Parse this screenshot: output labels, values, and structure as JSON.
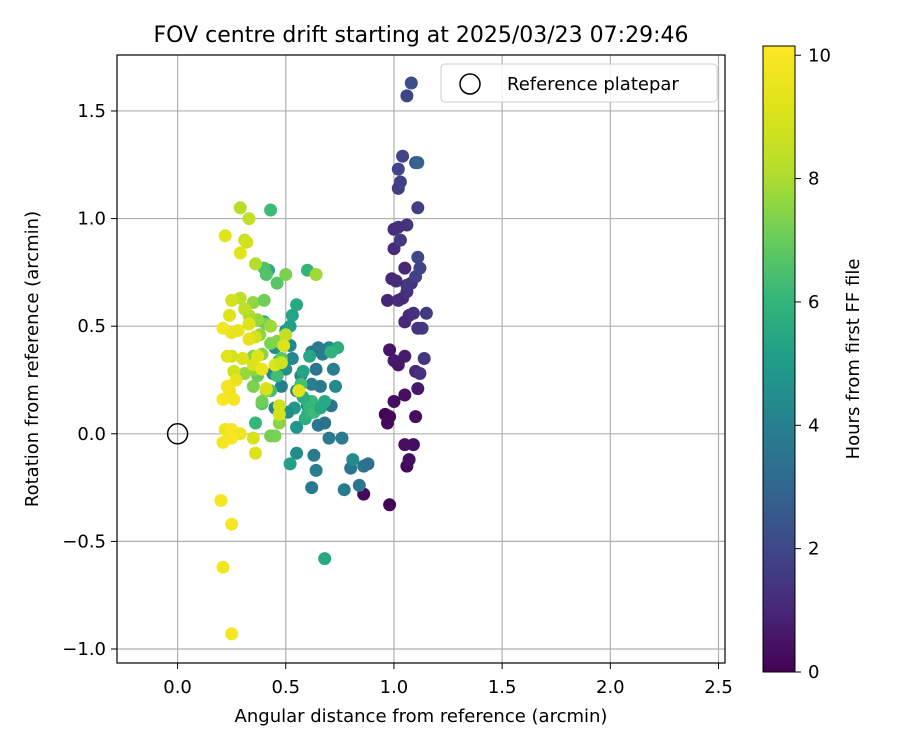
{
  "chart_data": {
    "type": "scatter",
    "title": "FOV centre drift starting at 2025/03/23 07:29:46",
    "xlabel": "Angular distance from reference (arcmin)",
    "ylabel": "Rotation from reference (arcmin)",
    "xlim": [
      -0.28,
      2.53
    ],
    "ylim": [
      -1.065,
      1.76
    ],
    "x_ticks": [
      0.0,
      0.5,
      1.0,
      1.5,
      2.0,
      2.5
    ],
    "x_tick_labels": [
      "0.0",
      "0.5",
      "1.0",
      "1.5",
      "2.0",
      "2.5"
    ],
    "y_ticks": [
      -1.0,
      -0.5,
      0.0,
      0.5,
      1.0,
      1.5
    ],
    "y_tick_labels": [
      "−1.0",
      "−0.5",
      "0.0",
      "0.5",
      "1.0",
      "1.5"
    ],
    "grid": true,
    "legend": {
      "position": "top-right",
      "entries": [
        "Reference platepar"
      ]
    },
    "reference_point": {
      "x": 0.0,
      "y": 0.0
    },
    "colorbar": {
      "label": "Hours from first FF file",
      "colormap": "viridis",
      "range": [
        0,
        10.15
      ],
      "ticks": [
        0,
        2,
        4,
        6,
        8,
        10
      ],
      "tick_labels": [
        "0",
        "2",
        "4",
        "6",
        "8",
        "10"
      ]
    },
    "points": [
      [
        0.98,
        -0.33,
        0.1
      ],
      [
        0.86,
        -0.28,
        0.2
      ],
      [
        1.06,
        -0.15,
        0.2
      ],
      [
        1.07,
        -0.12,
        0.3
      ],
      [
        1.09,
        -0.05,
        0.3
      ],
      [
        1.05,
        -0.05,
        0.4
      ],
      [
        0.97,
        0.05,
        0.2
      ],
      [
        0.96,
        0.09,
        0.1
      ],
      [
        0.98,
        0.08,
        0.2
      ],
      [
        1.1,
        0.08,
        0.3
      ],
      [
        1.0,
        0.15,
        0.3
      ],
      [
        1.05,
        0.18,
        0.4
      ],
      [
        1.11,
        0.21,
        0.6
      ],
      [
        0.98,
        0.39,
        0.5
      ],
      [
        1.0,
        0.34,
        0.7
      ],
      [
        1.05,
        0.36,
        0.7
      ],
      [
        1.02,
        0.32,
        0.6
      ],
      [
        1.1,
        0.29,
        1.0
      ],
      [
        1.12,
        0.28,
        1.3
      ],
      [
        1.14,
        0.35,
        1.5
      ],
      [
        1.13,
        0.49,
        1.7
      ],
      [
        1.11,
        0.49,
        1.4
      ],
      [
        1.05,
        0.52,
        1.0
      ],
      [
        1.07,
        0.55,
        1.1
      ],
      [
        1.09,
        0.56,
        1.3
      ],
      [
        1.15,
        0.56,
        1.6
      ],
      [
        0.97,
        0.62,
        0.9
      ],
      [
        1.02,
        0.62,
        1.2
      ],
      [
        1.04,
        0.63,
        1.1
      ],
      [
        1.06,
        0.66,
        1.3
      ],
      [
        1.08,
        0.7,
        1.2
      ],
      [
        1.06,
        0.69,
        1.5
      ],
      [
        0.99,
        0.72,
        1.0
      ],
      [
        1.01,
        0.71,
        1.1
      ],
      [
        1.05,
        0.77,
        1.0
      ],
      [
        1.1,
        0.73,
        1.8
      ],
      [
        1.12,
        0.77,
        1.9
      ],
      [
        1.11,
        0.82,
        2.0
      ],
      [
        1.0,
        0.86,
        1.1
      ],
      [
        1.0,
        0.95,
        1.2
      ],
      [
        1.02,
        0.96,
        1.3
      ],
      [
        1.06,
        0.97,
        1.4
      ],
      [
        1.03,
        0.9,
        1.6
      ],
      [
        1.11,
        1.05,
        1.7
      ],
      [
        1.02,
        1.14,
        1.7
      ],
      [
        1.03,
        1.17,
        1.8
      ],
      [
        1.02,
        1.23,
        1.9
      ],
      [
        1.04,
        1.29,
        1.9
      ],
      [
        1.1,
        1.26,
        2.4
      ],
      [
        1.11,
        1.26,
        2.9
      ],
      [
        1.06,
        1.57,
        1.9
      ],
      [
        1.08,
        1.63,
        2.2
      ],
      [
        0.76,
        -0.02,
        3.8
      ],
      [
        0.7,
        -0.02,
        3.7
      ],
      [
        0.65,
        0.04,
        3.6
      ],
      [
        0.68,
        0.05,
        3.4
      ],
      [
        0.71,
        0.13,
        3.5
      ],
      [
        0.66,
        0.22,
        3.7
      ],
      [
        0.64,
        0.3,
        3.6
      ],
      [
        0.67,
        0.37,
        3.9
      ],
      [
        0.7,
        0.4,
        4.2
      ],
      [
        0.72,
        0.3,
        4.0
      ],
      [
        0.73,
        0.22,
        4.4
      ],
      [
        0.62,
        0.23,
        3.9
      ],
      [
        0.62,
        0.38,
        3.8
      ],
      [
        0.65,
        0.4,
        3.7
      ],
      [
        0.6,
        0.13,
        4.3
      ],
      [
        0.63,
        -0.1,
        3.8
      ],
      [
        0.64,
        -0.17,
        3.9
      ],
      [
        0.62,
        -0.25,
        3.7
      ],
      [
        0.77,
        -0.26,
        3.8
      ],
      [
        0.84,
        -0.24,
        3.6
      ],
      [
        0.8,
        -0.16,
        3.6
      ],
      [
        0.86,
        -0.15,
        3.6
      ],
      [
        0.88,
        -0.14,
        3.4
      ],
      [
        0.81,
        -0.12,
        4.4
      ],
      [
        0.55,
        -0.09,
        4.4
      ],
      [
        0.52,
        -0.14,
        5.2
      ],
      [
        0.68,
        -0.58,
        5.5
      ],
      [
        0.55,
        0.03,
        4.8
      ],
      [
        0.54,
        0.12,
        4.9
      ],
      [
        0.51,
        0.1,
        4.6
      ],
      [
        0.45,
        0.12,
        4.1
      ],
      [
        0.48,
        0.22,
        3.9
      ],
      [
        0.44,
        0.28,
        4.1
      ],
      [
        0.5,
        0.3,
        4.6
      ],
      [
        0.55,
        0.2,
        4.0
      ],
      [
        0.57,
        0.27,
        4.2
      ],
      [
        0.53,
        0.35,
        4.3
      ],
      [
        0.52,
        0.41,
        4.3
      ],
      [
        0.5,
        0.48,
        4.8
      ],
      [
        0.52,
        0.5,
        5.1
      ],
      [
        0.53,
        0.55,
        5.3
      ],
      [
        0.55,
        0.6,
        5.5
      ],
      [
        0.45,
        0.4,
        4.5
      ],
      [
        0.47,
        0.34,
        4.9
      ],
      [
        0.4,
        0.52,
        5.1
      ],
      [
        0.59,
        0.07,
        5.6
      ],
      [
        0.6,
        0.09,
        5.8
      ],
      [
        0.61,
        0.12,
        6.0
      ],
      [
        0.63,
        0.1,
        6.2
      ],
      [
        0.6,
        0.15,
        5.9
      ],
      [
        0.62,
        0.15,
        6.1
      ],
      [
        0.66,
        0.12,
        5.5
      ],
      [
        0.68,
        0.15,
        5.5
      ],
      [
        0.58,
        0.17,
        5.7
      ],
      [
        0.57,
        0.23,
        6.4
      ],
      [
        0.58,
        0.29,
        5.3
      ],
      [
        0.61,
        0.36,
        5.4
      ],
      [
        0.74,
        0.4,
        5.7
      ],
      [
        0.71,
        0.38,
        5.9
      ],
      [
        0.48,
        0.35,
        6.8
      ],
      [
        0.46,
        0.27,
        6.3
      ],
      [
        0.43,
        0.2,
        6.4
      ],
      [
        0.39,
        0.14,
        6.6
      ],
      [
        0.36,
        0.05,
        6.1
      ],
      [
        0.42,
        0.76,
        5.6
      ],
      [
        0.6,
        0.76,
        6.0
      ],
      [
        0.43,
        1.04,
        6.2
      ],
      [
        0.4,
        0.77,
        6.5
      ],
      [
        0.41,
        0.74,
        6.6
      ],
      [
        0.46,
        0.7,
        6.7
      ],
      [
        0.45,
        -0.01,
        7.3
      ],
      [
        0.43,
        -0.01,
        7.2
      ],
      [
        0.47,
        0.05,
        7.5
      ],
      [
        0.39,
        0.15,
        7.1
      ],
      [
        0.35,
        0.22,
        7.3
      ],
      [
        0.37,
        0.27,
        7.0
      ],
      [
        0.41,
        0.2,
        7.6
      ],
      [
        0.36,
        0.3,
        7.5
      ],
      [
        0.31,
        0.28,
        7.7
      ],
      [
        0.35,
        0.36,
        7.4
      ],
      [
        0.39,
        0.37,
        7.5
      ],
      [
        0.43,
        0.42,
        7.3
      ],
      [
        0.46,
        0.43,
        7.4
      ],
      [
        0.38,
        0.46,
        7.6
      ],
      [
        0.41,
        0.51,
        7.2
      ],
      [
        0.43,
        0.5,
        7.8
      ],
      [
        0.35,
        0.61,
        7.6
      ],
      [
        0.4,
        0.62,
        7.1
      ],
      [
        0.5,
        0.74,
        7.3
      ],
      [
        0.64,
        0.74,
        7.8
      ],
      [
        0.37,
        0.53,
        7.7
      ],
      [
        0.33,
        0.55,
        8.0
      ],
      [
        0.31,
        0.58,
        8.4
      ],
      [
        0.29,
        0.63,
        8.3
      ],
      [
        0.36,
        0.79,
        8.1
      ],
      [
        0.29,
        1.05,
        8.2
      ],
      [
        0.33,
        1.0,
        8.5
      ],
      [
        0.31,
        0.9,
        8.5
      ],
      [
        0.32,
        0.89,
        8.8
      ],
      [
        0.29,
        0.84,
        9.3
      ],
      [
        0.22,
        0.92,
        9.3
      ],
      [
        0.25,
        0.62,
        8.9
      ],
      [
        0.24,
        0.55,
        9.2
      ],
      [
        0.25,
        0.47,
        9.5
      ],
      [
        0.21,
        0.49,
        9.8
      ],
      [
        0.28,
        0.48,
        9.5
      ],
      [
        0.33,
        0.51,
        9.2
      ],
      [
        0.36,
        0.45,
        8.8
      ],
      [
        0.33,
        0.44,
        9.4
      ],
      [
        0.3,
        0.35,
        9.1
      ],
      [
        0.25,
        0.36,
        8.9
      ],
      [
        0.23,
        0.36,
        9.2
      ],
      [
        0.26,
        0.29,
        8.8
      ],
      [
        0.27,
        0.25,
        9.5
      ],
      [
        0.35,
        0.32,
        9.0
      ],
      [
        0.37,
        0.36,
        9.3
      ],
      [
        0.39,
        0.3,
        9.6
      ],
      [
        0.41,
        0.21,
        9.0
      ],
      [
        0.45,
        0.32,
        9.3
      ],
      [
        0.48,
        0.33,
        8.7
      ],
      [
        0.5,
        0.46,
        8.5
      ],
      [
        0.49,
        0.41,
        9.1
      ],
      [
        0.56,
        0.2,
        9.2
      ],
      [
        0.47,
        0.13,
        8.8
      ],
      [
        0.47,
        0.09,
        8.9
      ],
      [
        0.24,
        0.2,
        9.6
      ],
      [
        0.23,
        0.22,
        9.8
      ],
      [
        0.26,
        0.16,
        9.9
      ],
      [
        0.21,
        0.16,
        10.0
      ],
      [
        0.22,
        0.02,
        9.7
      ],
      [
        0.25,
        0.02,
        10.0
      ],
      [
        0.29,
        0.0,
        9.7
      ],
      [
        0.21,
        -0.04,
        9.9
      ],
      [
        0.25,
        -0.02,
        10.0
      ],
      [
        0.35,
        -0.02,
        9.0
      ],
      [
        0.36,
        -0.09,
        9.1
      ],
      [
        0.2,
        -0.31,
        9.9
      ],
      [
        0.25,
        -0.42,
        9.9
      ],
      [
        0.21,
        -0.62,
        9.8
      ],
      [
        0.25,
        -0.93,
        9.9
      ]
    ]
  }
}
